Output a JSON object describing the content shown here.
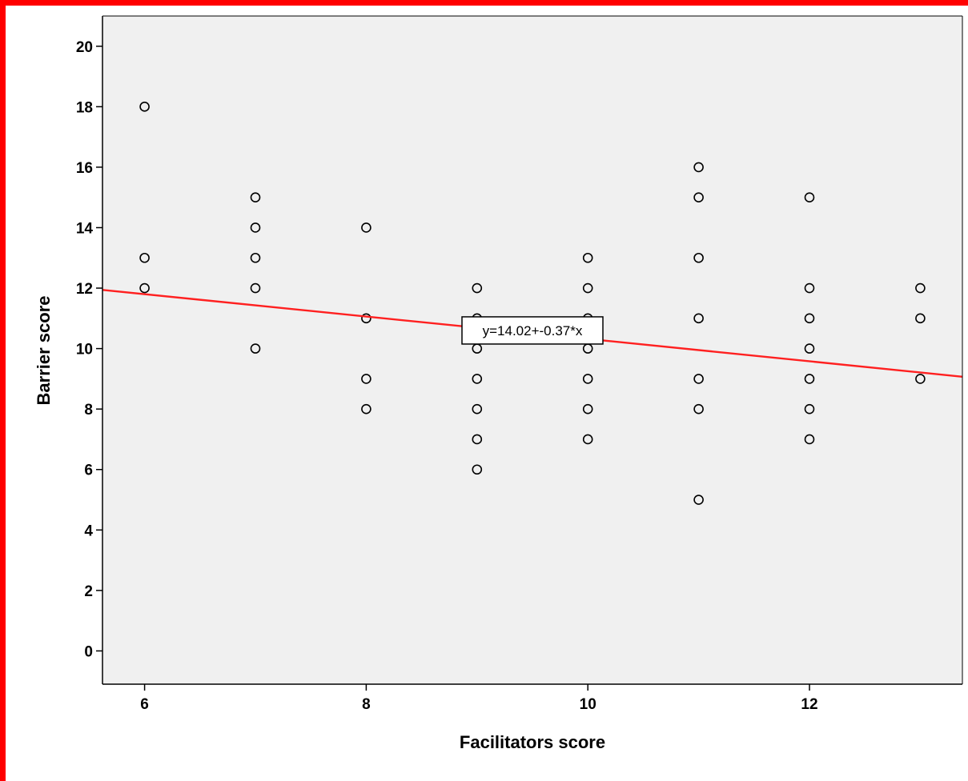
{
  "colors": {
    "frame": "#ff0000",
    "plot_background": "#f0f0f0",
    "fit_line": "#ff2020",
    "marker": "#000000"
  },
  "chart_data": {
    "type": "scatter",
    "title": "",
    "xlabel": "Facilitators  score",
    "ylabel": "Barrier score",
    "xlim": [
      5.62,
      13.38
    ],
    "ylim": [
      -1.1,
      21.0
    ],
    "x_ticks": [
      6,
      8,
      10,
      12
    ],
    "y_ticks": [
      0,
      2,
      4,
      6,
      8,
      10,
      12,
      14,
      16,
      18,
      20
    ],
    "grid": false,
    "legend": "none",
    "marker": "open-circle",
    "points": [
      {
        "x": 6,
        "y": 18
      },
      {
        "x": 6,
        "y": 13
      },
      {
        "x": 6,
        "y": 12
      },
      {
        "x": 7,
        "y": 15
      },
      {
        "x": 7,
        "y": 14
      },
      {
        "x": 7,
        "y": 13
      },
      {
        "x": 7,
        "y": 12
      },
      {
        "x": 7,
        "y": 10
      },
      {
        "x": 8,
        "y": 14
      },
      {
        "x": 8,
        "y": 11
      },
      {
        "x": 8,
        "y": 9
      },
      {
        "x": 8,
        "y": 8
      },
      {
        "x": 9,
        "y": 12
      },
      {
        "x": 9,
        "y": 11
      },
      {
        "x": 9,
        "y": 10
      },
      {
        "x": 9,
        "y": 9
      },
      {
        "x": 9,
        "y": 8
      },
      {
        "x": 9,
        "y": 7
      },
      {
        "x": 9,
        "y": 6
      },
      {
        "x": 10,
        "y": 13
      },
      {
        "x": 10,
        "y": 12
      },
      {
        "x": 10,
        "y": 11
      },
      {
        "x": 10,
        "y": 10
      },
      {
        "x": 10,
        "y": 9
      },
      {
        "x": 10,
        "y": 8
      },
      {
        "x": 10,
        "y": 7
      },
      {
        "x": 11,
        "y": 16
      },
      {
        "x": 11,
        "y": 15
      },
      {
        "x": 11,
        "y": 13
      },
      {
        "x": 11,
        "y": 11
      },
      {
        "x": 11,
        "y": 9
      },
      {
        "x": 11,
        "y": 8
      },
      {
        "x": 11,
        "y": 5
      },
      {
        "x": 12,
        "y": 15
      },
      {
        "x": 12,
        "y": 12
      },
      {
        "x": 12,
        "y": 11
      },
      {
        "x": 12,
        "y": 10
      },
      {
        "x": 12,
        "y": 9
      },
      {
        "x": 12,
        "y": 8
      },
      {
        "x": 12,
        "y": 7
      },
      {
        "x": 13,
        "y": 12
      },
      {
        "x": 13,
        "y": 11
      },
      {
        "x": 13,
        "y": 9
      }
    ],
    "fit_line": {
      "intercept": 14.02,
      "slope": -0.37,
      "label": "y=14.02+-0.37*x",
      "label_anchor": {
        "x": 9.5,
        "y": 10.6
      }
    }
  }
}
